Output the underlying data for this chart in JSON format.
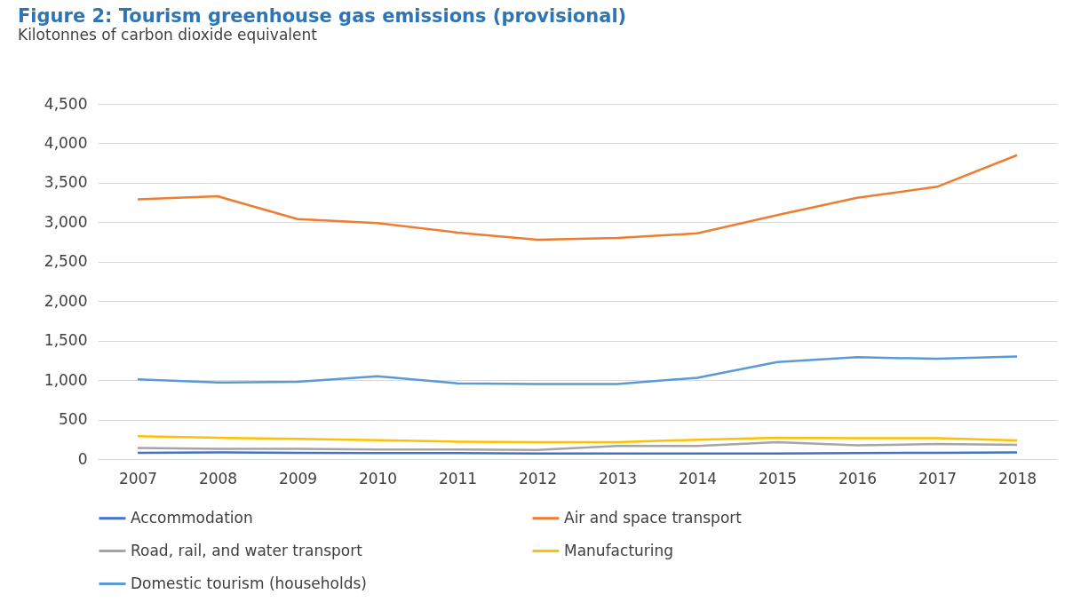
{
  "chart_data": {
    "type": "line",
    "title": "Figure 2: Tourism greenhouse gas emissions (provisional)",
    "subtitle": "Kilotonnes of carbon dioxide equivalent",
    "categories": [
      "2007",
      "2008",
      "2009",
      "2010",
      "2011",
      "2012",
      "2013",
      "2014",
      "2015",
      "2016",
      "2017",
      "2018"
    ],
    "series": [
      {
        "name": "Accommodation",
        "color": "#4472c4",
        "values": [
          80,
          85,
          80,
          75,
          75,
          70,
          70,
          70,
          70,
          75,
          80,
          85
        ]
      },
      {
        "name": "Air and space transport",
        "color": "#ed7d31",
        "values": [
          3290,
          3330,
          3040,
          2990,
          2870,
          2780,
          2800,
          2860,
          3090,
          3310,
          3450,
          3850
        ]
      },
      {
        "name": "Road, rail, and water transport",
        "color": "#a5a5a5",
        "values": [
          140,
          130,
          130,
          120,
          120,
          115,
          165,
          165,
          215,
          175,
          190,
          180
        ]
      },
      {
        "name": "Manufacturing",
        "color": "#ffc000",
        "values": [
          290,
          270,
          255,
          240,
          220,
          215,
          215,
          245,
          270,
          265,
          265,
          235
        ]
      },
      {
        "name": "Domestic tourism (households)",
        "color": "#5b9bd5",
        "values": [
          1010,
          970,
          980,
          1050,
          960,
          950,
          950,
          1030,
          1230,
          1290,
          1270,
          1300
        ]
      }
    ],
    "ylim": [
      0,
      4500
    ],
    "yticks": [
      {
        "value": 0,
        "label": "0"
      },
      {
        "value": 500,
        "label": "500"
      },
      {
        "value": 1000,
        "label": "1,000"
      },
      {
        "value": 1500,
        "label": "1,500"
      },
      {
        "value": 2000,
        "label": "2,000"
      },
      {
        "value": 2500,
        "label": "2,500"
      },
      {
        "value": 3000,
        "label": "3,000"
      },
      {
        "value": 3500,
        "label": "3,500"
      },
      {
        "value": 4000,
        "label": "4,000"
      },
      {
        "value": 4500,
        "label": "4,500"
      }
    ],
    "grid": "y",
    "legend": "bottom"
  }
}
